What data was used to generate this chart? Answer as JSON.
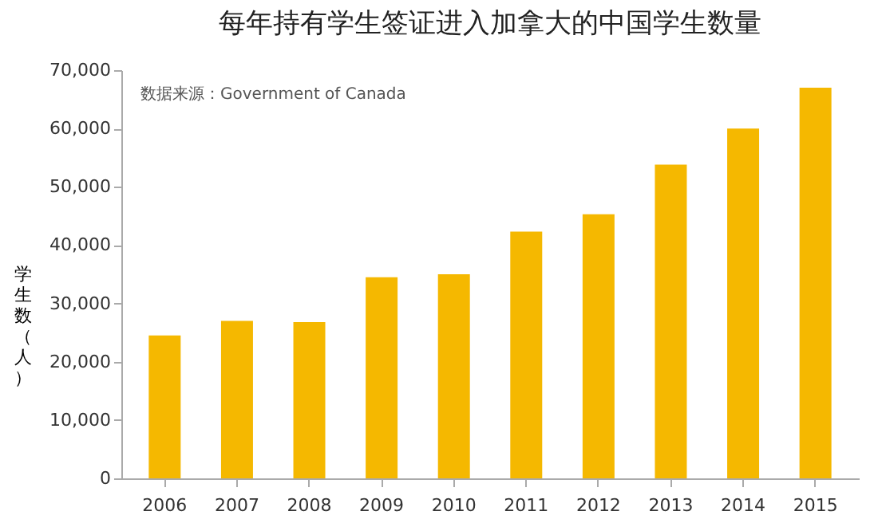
{
  "chart_data": {
    "type": "bar",
    "title": "每年持有学生签证进入加拿大的中国学生数量",
    "ylabel": "学生数（人）",
    "annotations": [
      "数据来源：Government of Canada"
    ],
    "categories": [
      "2006",
      "2007",
      "2008",
      "2009",
      "2010",
      "2011",
      "2012",
      "2013",
      "2014",
      "2015"
    ],
    "values": [
      24500,
      27000,
      26800,
      34500,
      35000,
      42300,
      45300,
      53800,
      60000,
      67000
    ],
    "color": "#f5b800",
    "ylim": [
      0,
      70000
    ],
    "yticks": [
      0,
      {
        "value": 10000,
        "label": "10,000"
      },
      {
        "value": 20000,
        "label": "20,000"
      },
      {
        "value": 30000,
        "label": "30,000"
      },
      {
        "value": 40000,
        "label": "40,000"
      },
      {
        "value": 50000,
        "label": "50,000"
      },
      {
        "value": 60000,
        "label": "60,000"
      },
      {
        "value": 70000,
        "label": "70,000"
      }
    ],
    "grid": false
  }
}
